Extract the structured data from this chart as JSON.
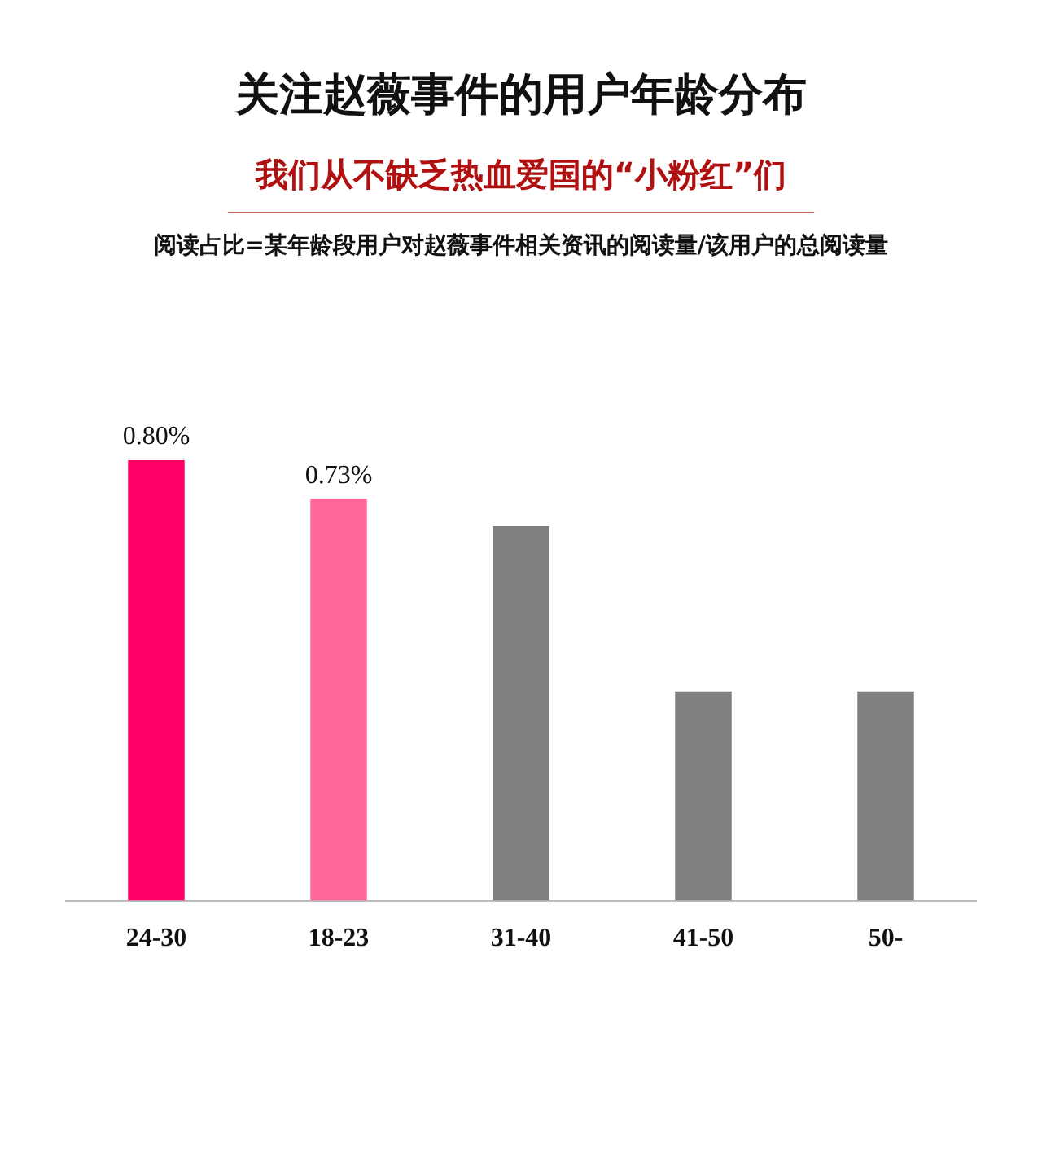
{
  "chart_data": {
    "type": "bar",
    "title": "关注赵薇事件的用户年龄分布",
    "subtitle": "我们从不缺乏热血爱国的“小粉红”们",
    "annotations": [
      "阅读占比=某年龄段用户对赵薇事件相关资讯的阅读量/该用户的总阅读量"
    ],
    "categories": [
      "24-30",
      "18-23",
      "31-40",
      "41-50",
      "50-"
    ],
    "values": [
      0.8,
      0.73,
      0.68,
      0.38,
      0.38
    ],
    "colors": [
      "#ff0066",
      "#ff6699",
      "#808080",
      "#808080",
      "#808080"
    ],
    "value_labels": [
      "0.80%",
      "0.73%",
      null,
      null,
      null
    ],
    "tick_labels": "x"
  }
}
